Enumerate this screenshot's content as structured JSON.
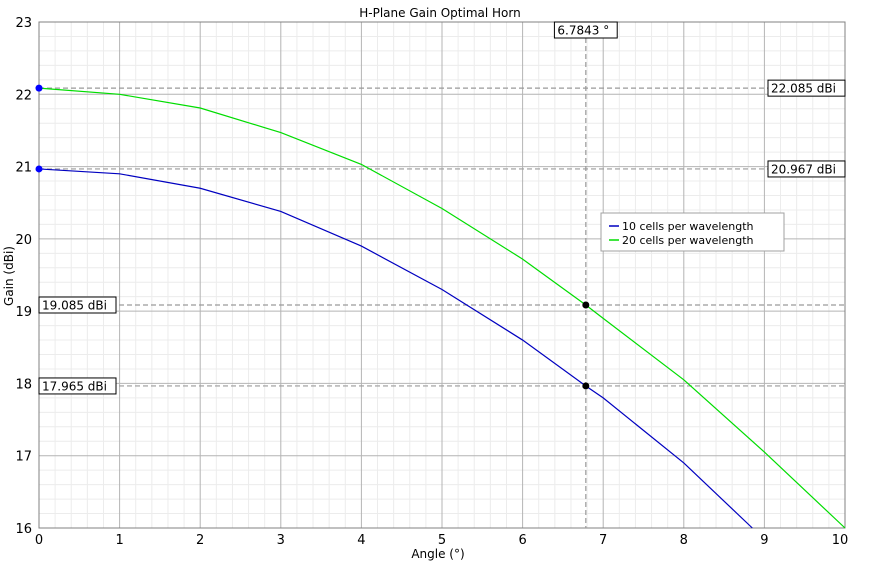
{
  "chart_data": {
    "type": "line",
    "title": "H-Plane Gain Optimal Horn",
    "xlabel": "Angle (°)",
    "ylabel": "Gain (dBi)",
    "xlim": [
      0,
      10
    ],
    "ylim": [
      16,
      23
    ],
    "x_ticks": [
      0,
      1,
      2,
      3,
      4,
      5,
      6,
      7,
      8,
      9,
      10
    ],
    "y_ticks": [
      16,
      17,
      18,
      19,
      20,
      21,
      22,
      23
    ],
    "grid": true,
    "minor_grid": true,
    "legend_position": "right",
    "series": [
      {
        "name": "10 cells per wavelength",
        "color": "#0000c0",
        "x": [
          0,
          1,
          2,
          3,
          4,
          5,
          6,
          6.7843,
          7,
          8,
          8.85
        ],
        "y": [
          20.967,
          20.9,
          20.7,
          20.38,
          19.9,
          19.3,
          18.6,
          17.965,
          17.8,
          16.9,
          16.0
        ]
      },
      {
        "name": "20 cells per wavelength",
        "color": "#00dd00",
        "x": [
          0,
          1,
          2,
          3,
          4,
          5,
          6,
          6.7843,
          7,
          8,
          9,
          10
        ],
        "y": [
          22.085,
          22.0,
          21.81,
          21.47,
          21.03,
          20.42,
          19.72,
          19.085,
          18.9,
          18.05,
          17.05,
          16.0
        ]
      }
    ],
    "markers": {
      "x_marker": {
        "value": 6.7843,
        "label": "6.7843 °"
      },
      "horizontal": [
        {
          "value": 22.085,
          "label": "22.085 dBi",
          "side": "right",
          "series": 1,
          "at_x": 0
        },
        {
          "value": 20.967,
          "label": "20.967 dBi",
          "side": "right",
          "series": 0,
          "at_x": 0
        },
        {
          "value": 19.085,
          "label": "19.085 dBi",
          "side": "left",
          "series": 1,
          "at_x": 6.7843
        },
        {
          "value": 17.965,
          "label": "17.965 dBi",
          "side": "left",
          "series": 0,
          "at_x": 6.7843
        }
      ]
    }
  }
}
